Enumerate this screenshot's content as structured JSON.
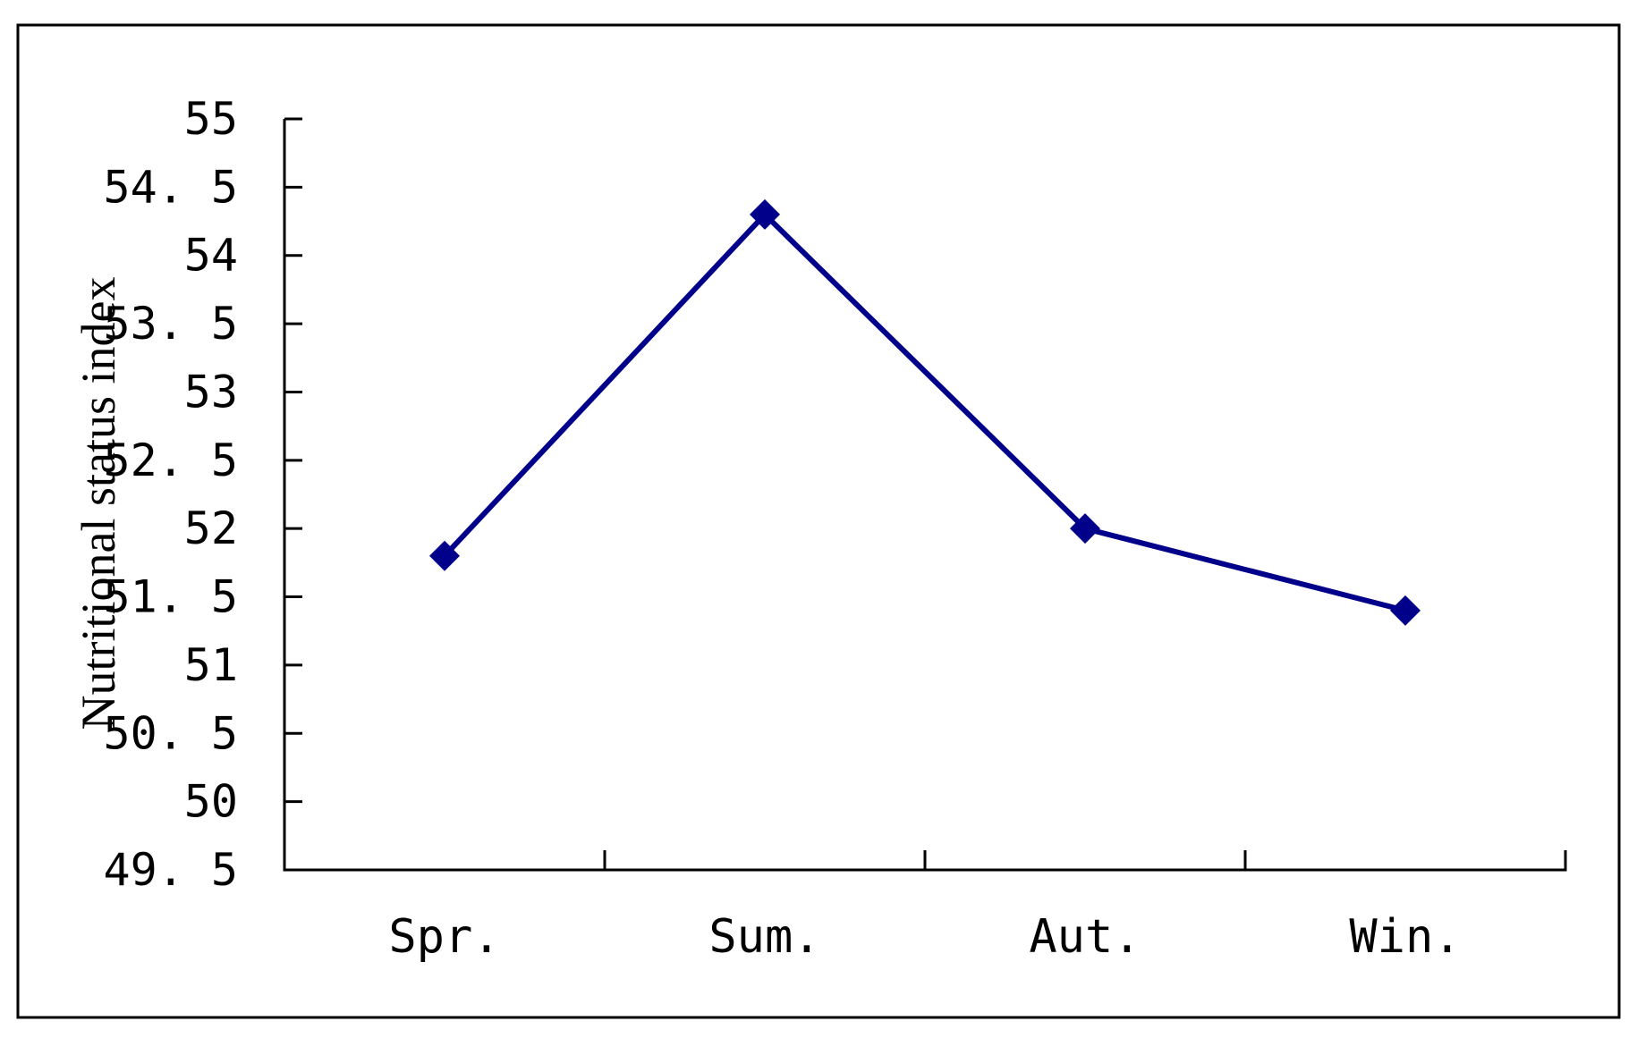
{
  "chart_data": {
    "type": "line",
    "categories": [
      "Spr.",
      "Sum.",
      "Aut.",
      "Win."
    ],
    "series": [
      {
        "values": [
          51.8,
          54.3,
          52.0,
          51.4
        ],
        "color": "#00008B",
        "marker": "diamond"
      }
    ],
    "title": "",
    "xlabel": "",
    "ylabel": "Nutritional status index",
    "ylim": [
      49.5,
      55
    ],
    "yticks": [
      49.5,
      50,
      50.5,
      51,
      51.5,
      52,
      52.5,
      53,
      53.5,
      54,
      54.5,
      55
    ],
    "ytick_labels": [
      "49. 5",
      "50",
      "50. 5",
      "51",
      "51. 5",
      "52",
      "52. 5",
      "53",
      "53. 5",
      "54",
      "54. 5",
      "55"
    ],
    "grid": false,
    "legend": "none"
  }
}
